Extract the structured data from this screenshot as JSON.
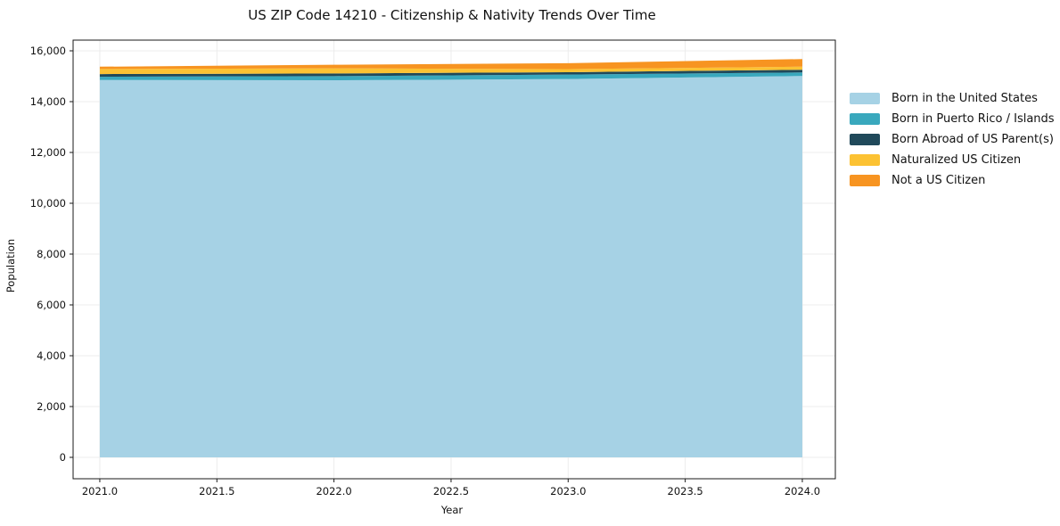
{
  "title": "US ZIP Code 14210 - Citizenship & Nativity Trends Over Time",
  "chart_data": {
    "type": "area",
    "stacked": true,
    "title": "US ZIP Code 14210 - Citizenship & Nativity Trends Over Time",
    "xlabel": "Year",
    "ylabel": "Population",
    "x": [
      2021,
      2022,
      2023,
      2024
    ],
    "series": [
      {
        "name": "Born in the United States",
        "color": "#a6d2e5",
        "values": [
          14850,
          14840,
          14890,
          15010
        ]
      },
      {
        "name": "Born in Puerto Rico / Islands",
        "color": "#39a8bd",
        "values": [
          130,
          165,
          175,
          140
        ]
      },
      {
        "name": "Born Abroad of US Parent(s)",
        "color": "#20495a",
        "values": [
          105,
          105,
          95,
          105
        ]
      },
      {
        "name": "Naturalized US Citizen",
        "color": "#fcc233",
        "values": [
          200,
          200,
          120,
          120
        ]
      },
      {
        "name": "Not a US Citizen",
        "color": "#f79421",
        "values": [
          90,
          140,
          235,
          300
        ]
      }
    ],
    "xticks": [
      2021.0,
      2021.5,
      2022.0,
      2022.5,
      2023.0,
      2023.5,
      2024.0
    ],
    "xtick_labels": [
      "2021.0",
      "2021.5",
      "2022.0",
      "2022.5",
      "2023.0",
      "2023.5",
      "2024.0"
    ],
    "yticks": [
      0,
      2000,
      4000,
      6000,
      8000,
      10000,
      12000,
      14000,
      16000
    ],
    "ytick_labels": [
      "0",
      "2,000",
      "4,000",
      "6,000",
      "8,000",
      "10,000",
      "12,000",
      "14,000",
      "16,000"
    ],
    "xlim": [
      2020.886,
      2024.141
    ],
    "ylim": [
      -842,
      16421
    ],
    "grid": true,
    "legend_position": "right",
    "colors": {
      "gridline": "#ececec",
      "spine": "#1a1a1a",
      "tick_text": "#111111",
      "background": "#ffffff"
    }
  }
}
